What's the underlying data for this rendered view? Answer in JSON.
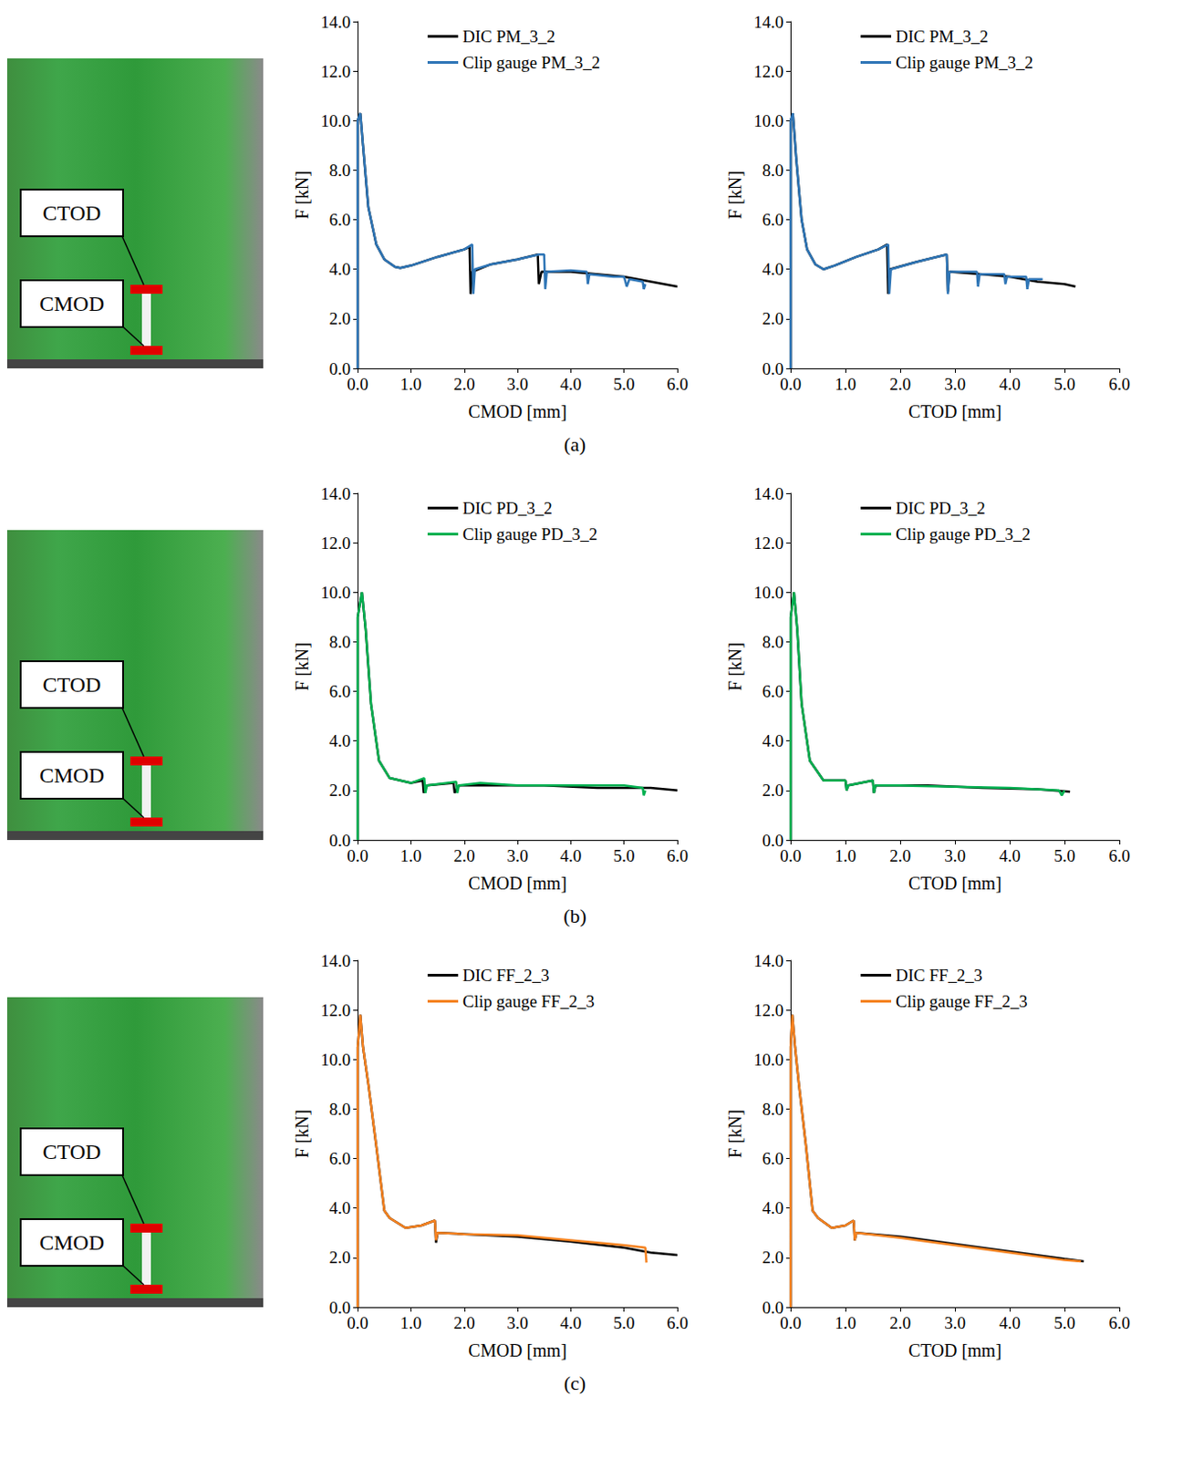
{
  "chart_data": [
    {
      "type": "line",
      "x_label": "CMOD [mm]",
      "y_label": "F [kN]",
      "legend": "top",
      "grid": false,
      "xlim": [
        0,
        6
      ],
      "ylim": [
        0,
        14
      ],
      "xticks": [
        {
          "value": 0,
          "label": "0.0"
        },
        {
          "value": 1,
          "label": "1.0"
        },
        {
          "value": 2,
          "label": "2.0"
        },
        {
          "value": 3,
          "label": "3.0"
        },
        {
          "value": 4,
          "label": "4.0"
        },
        {
          "value": 5,
          "label": "5.0"
        },
        {
          "value": 6,
          "label": "6.0"
        }
      ],
      "yticks": [
        {
          "value": 0,
          "label": "0.0"
        },
        {
          "value": 2,
          "label": "2.0"
        },
        {
          "value": 4,
          "label": "4.0"
        },
        {
          "value": 6,
          "label": "6.0"
        },
        {
          "value": 8,
          "label": "8.0"
        },
        {
          "value": 10,
          "label": "10.0"
        },
        {
          "value": 12,
          "label": "12.0"
        },
        {
          "value": 14,
          "label": "14.0"
        }
      ],
      "series": [
        {
          "name": "DIC PM_3_2",
          "color": "#000000",
          "x": [
            0,
            0,
            0.05,
            0.1,
            0.2,
            0.35,
            0.5,
            0.7,
            0.8,
            1.0,
            1.5,
            2.0,
            2.1,
            2.12,
            2.15,
            2.5,
            3.0,
            3.38,
            3.4,
            3.45,
            4.0,
            4.5,
            5.0,
            5.5,
            6.0
          ],
          "values": [
            0,
            10.0,
            10.3,
            9.0,
            6.5,
            5.0,
            4.4,
            4.1,
            4.05,
            4.15,
            4.5,
            4.8,
            4.9,
            3.0,
            3.9,
            4.2,
            4.4,
            4.6,
            3.4,
            3.9,
            3.9,
            3.8,
            3.7,
            3.5,
            3.3
          ]
        },
        {
          "name": "Clip gauge PM_3_2",
          "color": "#2E75B6",
          "x": [
            0,
            0,
            0.05,
            0.1,
            0.2,
            0.35,
            0.5,
            0.7,
            0.8,
            1.0,
            1.5,
            2.0,
            2.15,
            2.17,
            2.2,
            2.5,
            3.0,
            3.4,
            3.5,
            3.52,
            3.55,
            4.0,
            4.3,
            4.32,
            4.35,
            4.8,
            5.0,
            5.05,
            5.1,
            5.35,
            5.37,
            5.4
          ],
          "values": [
            0,
            10.0,
            10.3,
            9.0,
            6.5,
            5.0,
            4.4,
            4.1,
            4.05,
            4.15,
            4.5,
            4.8,
            5.0,
            3.0,
            4.0,
            4.2,
            4.4,
            4.6,
            4.6,
            3.2,
            3.9,
            3.95,
            3.9,
            3.4,
            3.8,
            3.7,
            3.7,
            3.3,
            3.6,
            3.5,
            3.2,
            3.4
          ]
        }
      ]
    },
    {
      "type": "line",
      "x_label": "CTOD [mm]",
      "y_label": "F [kN]",
      "legend": "top",
      "grid": false,
      "xlim": [
        0,
        6
      ],
      "ylim": [
        0,
        14
      ],
      "xticks": [
        {
          "value": 0,
          "label": "0.0"
        },
        {
          "value": 1,
          "label": "1.0"
        },
        {
          "value": 2,
          "label": "2.0"
        },
        {
          "value": 3,
          "label": "3.0"
        },
        {
          "value": 4,
          "label": "4.0"
        },
        {
          "value": 5,
          "label": "5.0"
        },
        {
          "value": 6,
          "label": "6.0"
        }
      ],
      "yticks": [
        {
          "value": 0,
          "label": "0.0"
        },
        {
          "value": 2,
          "label": "2.0"
        },
        {
          "value": 4,
          "label": "4.0"
        },
        {
          "value": 6,
          "label": "6.0"
        },
        {
          "value": 8,
          "label": "8.0"
        },
        {
          "value": 10,
          "label": "10.0"
        },
        {
          "value": 12,
          "label": "12.0"
        },
        {
          "value": 14,
          "label": "14.0"
        }
      ],
      "series": [
        {
          "name": "DIC PM_3_2",
          "color": "#000000",
          "x": [
            0,
            0,
            0.04,
            0.1,
            0.2,
            0.3,
            0.45,
            0.6,
            0.8,
            1.2,
            1.6,
            1.76,
            1.78,
            1.81,
            2.3,
            2.85,
            2.87,
            2.9,
            3.5,
            4.0,
            4.5,
            5.0,
            5.2
          ],
          "values": [
            0,
            10.0,
            10.3,
            8.5,
            6.0,
            4.8,
            4.2,
            4.0,
            4.15,
            4.5,
            4.8,
            5.0,
            3.0,
            4.0,
            4.3,
            4.6,
            3.1,
            3.9,
            3.8,
            3.7,
            3.5,
            3.4,
            3.3
          ]
        },
        {
          "name": "Clip gauge PM_3_2",
          "color": "#2E75B6",
          "x": [
            0,
            0,
            0.04,
            0.1,
            0.2,
            0.3,
            0.45,
            0.6,
            0.8,
            1.2,
            1.6,
            1.78,
            1.8,
            1.83,
            2.3,
            2.85,
            2.87,
            2.9,
            3.4,
            3.42,
            3.45,
            3.9,
            3.92,
            3.95,
            4.3,
            4.32,
            4.35,
            4.6
          ],
          "values": [
            0,
            10.0,
            10.3,
            8.5,
            6.0,
            4.8,
            4.2,
            4.0,
            4.15,
            4.5,
            4.8,
            5.0,
            3.0,
            4.0,
            4.3,
            4.6,
            3.0,
            3.9,
            3.9,
            3.3,
            3.8,
            3.8,
            3.4,
            3.7,
            3.7,
            3.2,
            3.6,
            3.6
          ]
        }
      ]
    },
    {
      "type": "line",
      "x_label": "CMOD [mm]",
      "y_label": "F [kN]",
      "legend": "top",
      "grid": false,
      "xlim": [
        0,
        6
      ],
      "ylim": [
        0,
        14
      ],
      "xticks": [
        {
          "value": 0,
          "label": "0.0"
        },
        {
          "value": 1,
          "label": "1.0"
        },
        {
          "value": 2,
          "label": "2.0"
        },
        {
          "value": 3,
          "label": "3.0"
        },
        {
          "value": 4,
          "label": "4.0"
        },
        {
          "value": 5,
          "label": "5.0"
        },
        {
          "value": 6,
          "label": "6.0"
        }
      ],
      "yticks": [
        {
          "value": 0,
          "label": "0.0"
        },
        {
          "value": 2,
          "label": "2.0"
        },
        {
          "value": 4,
          "label": "4.0"
        },
        {
          "value": 6,
          "label": "6.0"
        },
        {
          "value": 8,
          "label": "8.0"
        },
        {
          "value": 10,
          "label": "10.0"
        },
        {
          "value": 12,
          "label": "12.0"
        },
        {
          "value": 14,
          "label": "14.0"
        }
      ],
      "series": [
        {
          "name": "DIC PD_3_2",
          "color": "#000000",
          "x": [
            0,
            0,
            0.08,
            0.15,
            0.25,
            0.4,
            0.6,
            1.0,
            1.22,
            1.24,
            1.3,
            1.8,
            1.82,
            1.9,
            2.5,
            3.5,
            4.5,
            5.5,
            6.0
          ],
          "values": [
            0,
            9.0,
            10.0,
            8.5,
            5.5,
            3.2,
            2.5,
            2.3,
            2.4,
            1.9,
            2.2,
            2.3,
            1.9,
            2.2,
            2.2,
            2.2,
            2.1,
            2.1,
            2.0
          ]
        },
        {
          "name": "Clip gauge PD_3_2",
          "color": "#00B050",
          "x": [
            0,
            0,
            0.08,
            0.15,
            0.25,
            0.4,
            0.6,
            1.0,
            1.25,
            1.27,
            1.3,
            1.85,
            1.87,
            1.9,
            2.3,
            3.0,
            4.0,
            5.0,
            5.35,
            5.37,
            5.4
          ],
          "values": [
            0,
            9.0,
            10.0,
            8.5,
            5.5,
            3.2,
            2.5,
            2.3,
            2.5,
            1.9,
            2.2,
            2.35,
            1.9,
            2.2,
            2.3,
            2.2,
            2.2,
            2.2,
            2.1,
            1.8,
            2.0
          ]
        }
      ]
    },
    {
      "type": "line",
      "x_label": "CTOD [mm]",
      "y_label": "F [kN]",
      "legend": "top",
      "grid": false,
      "xlim": [
        0,
        6
      ],
      "ylim": [
        0,
        14
      ],
      "xticks": [
        {
          "value": 0,
          "label": "0.0"
        },
        {
          "value": 1,
          "label": "1.0"
        },
        {
          "value": 2,
          "label": "2.0"
        },
        {
          "value": 3,
          "label": "3.0"
        },
        {
          "value": 4,
          "label": "4.0"
        },
        {
          "value": 5,
          "label": "5.0"
        },
        {
          "value": 6,
          "label": "6.0"
        }
      ],
      "yticks": [
        {
          "value": 0,
          "label": "0.0"
        },
        {
          "value": 2,
          "label": "2.0"
        },
        {
          "value": 4,
          "label": "4.0"
        },
        {
          "value": 6,
          "label": "6.0"
        },
        {
          "value": 8,
          "label": "8.0"
        },
        {
          "value": 10,
          "label": "10.0"
        },
        {
          "value": 12,
          "label": "12.0"
        },
        {
          "value": 14,
          "label": "14.0"
        }
      ],
      "series": [
        {
          "name": "DIC PD_3_2",
          "color": "#000000",
          "x": [
            0,
            0,
            0.06,
            0.12,
            0.2,
            0.35,
            0.6,
            1.0,
            1.02,
            1.05,
            1.5,
            1.52,
            1.55,
            2.5,
            3.5,
            4.5,
            5.1
          ],
          "values": [
            0,
            9.0,
            10.0,
            8.5,
            5.5,
            3.2,
            2.4,
            2.4,
            2.0,
            2.2,
            2.4,
            1.9,
            2.2,
            2.2,
            2.1,
            2.05,
            1.95
          ]
        },
        {
          "name": "Clip gauge PD_3_2",
          "color": "#00B050",
          "x": [
            0,
            0,
            0.06,
            0.12,
            0.2,
            0.35,
            0.6,
            1.0,
            1.02,
            1.05,
            1.5,
            1.52,
            1.55,
            2.0,
            3.0,
            4.0,
            4.9,
            4.95,
            5.0
          ],
          "values": [
            0,
            9.0,
            10.0,
            8.5,
            5.5,
            3.2,
            2.4,
            2.4,
            2.0,
            2.2,
            2.4,
            1.9,
            2.2,
            2.2,
            2.15,
            2.1,
            2.0,
            1.8,
            2.0
          ]
        }
      ]
    },
    {
      "type": "line",
      "x_label": "CMOD [mm]",
      "y_label": "F [kN]",
      "legend": "top",
      "grid": false,
      "xlim": [
        0,
        6
      ],
      "ylim": [
        0,
        14
      ],
      "xticks": [
        {
          "value": 0,
          "label": "0.0"
        },
        {
          "value": 1,
          "label": "1.0"
        },
        {
          "value": 2,
          "label": "2.0"
        },
        {
          "value": 3,
          "label": "3.0"
        },
        {
          "value": 4,
          "label": "4.0"
        },
        {
          "value": 5,
          "label": "5.0"
        },
        {
          "value": 6,
          "label": "6.0"
        }
      ],
      "yticks": [
        {
          "value": 0,
          "label": "0.0"
        },
        {
          "value": 2,
          "label": "2.0"
        },
        {
          "value": 4,
          "label": "4.0"
        },
        {
          "value": 6,
          "label": "6.0"
        },
        {
          "value": 8,
          "label": "8.0"
        },
        {
          "value": 10,
          "label": "10.0"
        },
        {
          "value": 12,
          "label": "12.0"
        },
        {
          "value": 14,
          "label": "14.0"
        }
      ],
      "series": [
        {
          "name": "DIC FF_2_3",
          "color": "#000000",
          "x": [
            0,
            0,
            0.05,
            0.1,
            0.2,
            0.35,
            0.5,
            0.6,
            0.9,
            1.2,
            1.45,
            1.47,
            1.5,
            2.0,
            3.0,
            4.0,
            5.0,
            5.5,
            6.0
          ],
          "values": [
            0,
            10.5,
            11.8,
            10.5,
            9.0,
            6.5,
            3.9,
            3.6,
            3.2,
            3.3,
            3.5,
            2.6,
            3.0,
            2.95,
            2.85,
            2.65,
            2.4,
            2.2,
            2.1
          ]
        },
        {
          "name": "Clip gauge FF_2_3",
          "color": "#F58220",
          "x": [
            0,
            0,
            0.05,
            0.1,
            0.2,
            0.35,
            0.5,
            0.6,
            0.9,
            1.2,
            1.45,
            1.47,
            1.5,
            2.0,
            3.0,
            4.0,
            5.0,
            5.4,
            5.42
          ],
          "values": [
            0,
            10.5,
            11.8,
            10.5,
            9.0,
            6.5,
            3.9,
            3.6,
            3.2,
            3.3,
            3.5,
            2.7,
            3.0,
            2.95,
            2.9,
            2.7,
            2.5,
            2.4,
            1.8
          ]
        }
      ]
    },
    {
      "type": "line",
      "x_label": "CTOD [mm]",
      "y_label": "F [kN]",
      "legend": "top",
      "grid": false,
      "xlim": [
        0,
        6
      ],
      "ylim": [
        0,
        14
      ],
      "xticks": [
        {
          "value": 0,
          "label": "0.0"
        },
        {
          "value": 1,
          "label": "1.0"
        },
        {
          "value": 2,
          "label": "2.0"
        },
        {
          "value": 3,
          "label": "3.0"
        },
        {
          "value": 4,
          "label": "4.0"
        },
        {
          "value": 5,
          "label": "5.0"
        },
        {
          "value": 6,
          "label": "6.0"
        }
      ],
      "yticks": [
        {
          "value": 0,
          "label": "0.0"
        },
        {
          "value": 2,
          "label": "2.0"
        },
        {
          "value": 4,
          "label": "4.0"
        },
        {
          "value": 6,
          "label": "6.0"
        },
        {
          "value": 8,
          "label": "8.0"
        },
        {
          "value": 10,
          "label": "10.0"
        },
        {
          "value": 12,
          "label": "12.0"
        },
        {
          "value": 14,
          "label": "14.0"
        }
      ],
      "series": [
        {
          "name": "DIC FF_2_3",
          "color": "#000000",
          "x": [
            0,
            0,
            0.03,
            0.08,
            0.15,
            0.28,
            0.4,
            0.5,
            0.75,
            1.0,
            1.15,
            1.17,
            1.2,
            2.0,
            3.0,
            4.0,
            5.0,
            5.35
          ],
          "values": [
            0,
            10.5,
            11.8,
            10.5,
            9.0,
            6.5,
            3.9,
            3.6,
            3.2,
            3.3,
            3.5,
            2.7,
            3.0,
            2.85,
            2.55,
            2.25,
            1.95,
            1.85
          ]
        },
        {
          "name": "Clip gauge FF_2_3",
          "color": "#F58220",
          "x": [
            0,
            0,
            0.03,
            0.08,
            0.15,
            0.28,
            0.4,
            0.5,
            0.75,
            1.0,
            1.15,
            1.17,
            1.2,
            2.0,
            3.0,
            4.0,
            5.0,
            5.3
          ],
          "values": [
            0,
            10.5,
            11.8,
            10.5,
            9.0,
            6.5,
            3.9,
            3.6,
            3.2,
            3.3,
            3.5,
            2.7,
            3.0,
            2.8,
            2.5,
            2.2,
            1.9,
            1.85
          ]
        }
      ]
    }
  ],
  "panels": [
    {
      "caption": "(a)",
      "photo_labels": {
        "ctod": "CTOD",
        "cmod": "CMOD"
      }
    },
    {
      "caption": "(b)",
      "photo_labels": {
        "ctod": "CTOD",
        "cmod": "CMOD"
      }
    },
    {
      "caption": "(c)",
      "photo_labels": {
        "ctod": "CTOD",
        "cmod": "CMOD"
      }
    }
  ]
}
